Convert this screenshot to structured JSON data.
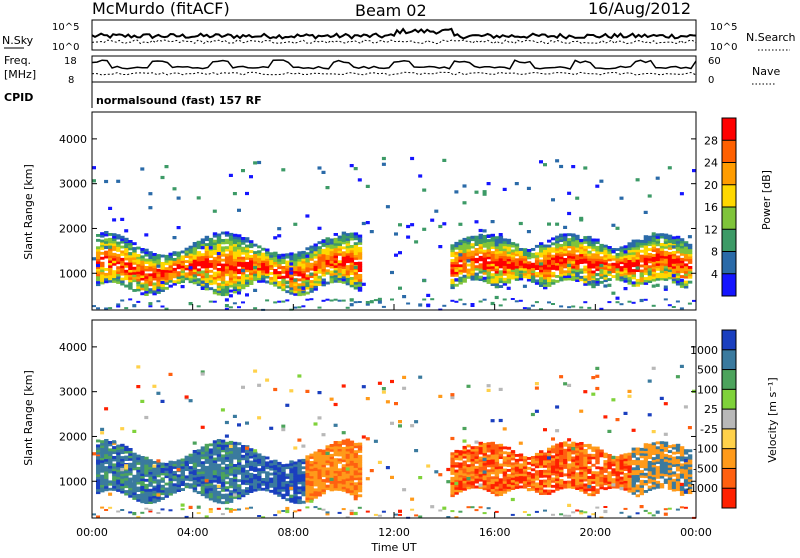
{
  "header": {
    "station": "McMurdo (fitACF)",
    "beam": "Beam 02",
    "date": "16/Aug/2012"
  },
  "top_panels": {
    "nsky_label": "N.Sky",
    "nsearch_label": "N.Search",
    "nsky_ticks": [
      "10^5",
      "10^0"
    ],
    "nsearch_ticks": [
      "10^5",
      "10^0"
    ],
    "freq_label_1": "Freq.",
    "freq_label_2": "[MHz]",
    "freq_ticks": [
      "18",
      "8"
    ],
    "nave_label": "Nave",
    "nave_ticks": [
      "60",
      "0"
    ],
    "cpid_label": "CPID",
    "cpid_text": "normalsound (fast) 157 RF"
  },
  "chart_data": [
    {
      "type": "heatmap",
      "name": "power",
      "ylabel": "Slant Range [km]",
      "yticks": [
        1000,
        2000,
        3000,
        4000
      ],
      "ylim": [
        180,
        4600
      ],
      "xlim": [
        0,
        24
      ],
      "colorbar_label": "Power [dB]",
      "colorbar_ticks": [
        "28",
        "24",
        "20",
        "16",
        "12",
        "8",
        "4"
      ],
      "colorbar_colors": [
        "#ff0000",
        "#ff6000",
        "#ff9c00",
        "#ffd800",
        "#7fc43a",
        "#3c9a66",
        "#2a6aa8",
        "#1515ff"
      ]
    },
    {
      "type": "heatmap",
      "name": "velocity",
      "ylabel": "Slant Range [km]",
      "yticks": [
        1000,
        2000,
        3000,
        4000
      ],
      "ylim": [
        180,
        4600
      ],
      "xlim": [
        0,
        24
      ],
      "xlabel": "Time UT",
      "xticks": [
        "00:00",
        "04:00",
        "08:00",
        "12:00",
        "16:00",
        "20:00",
        "00:00"
      ],
      "colorbar_label": "Velocity [m s⁻¹]",
      "colorbar_ticks": [
        "1000",
        "500",
        "100",
        "25",
        "-25",
        "-100",
        "-500",
        "-1000"
      ],
      "colorbar_colors": [
        "#1a3fbf",
        "#3a7a9e",
        "#4ca35c",
        "#7fd23a",
        "#b8b8b8",
        "#ffd14a",
        "#ff9a1a",
        "#ff6010",
        "#ff2000"
      ]
    }
  ]
}
